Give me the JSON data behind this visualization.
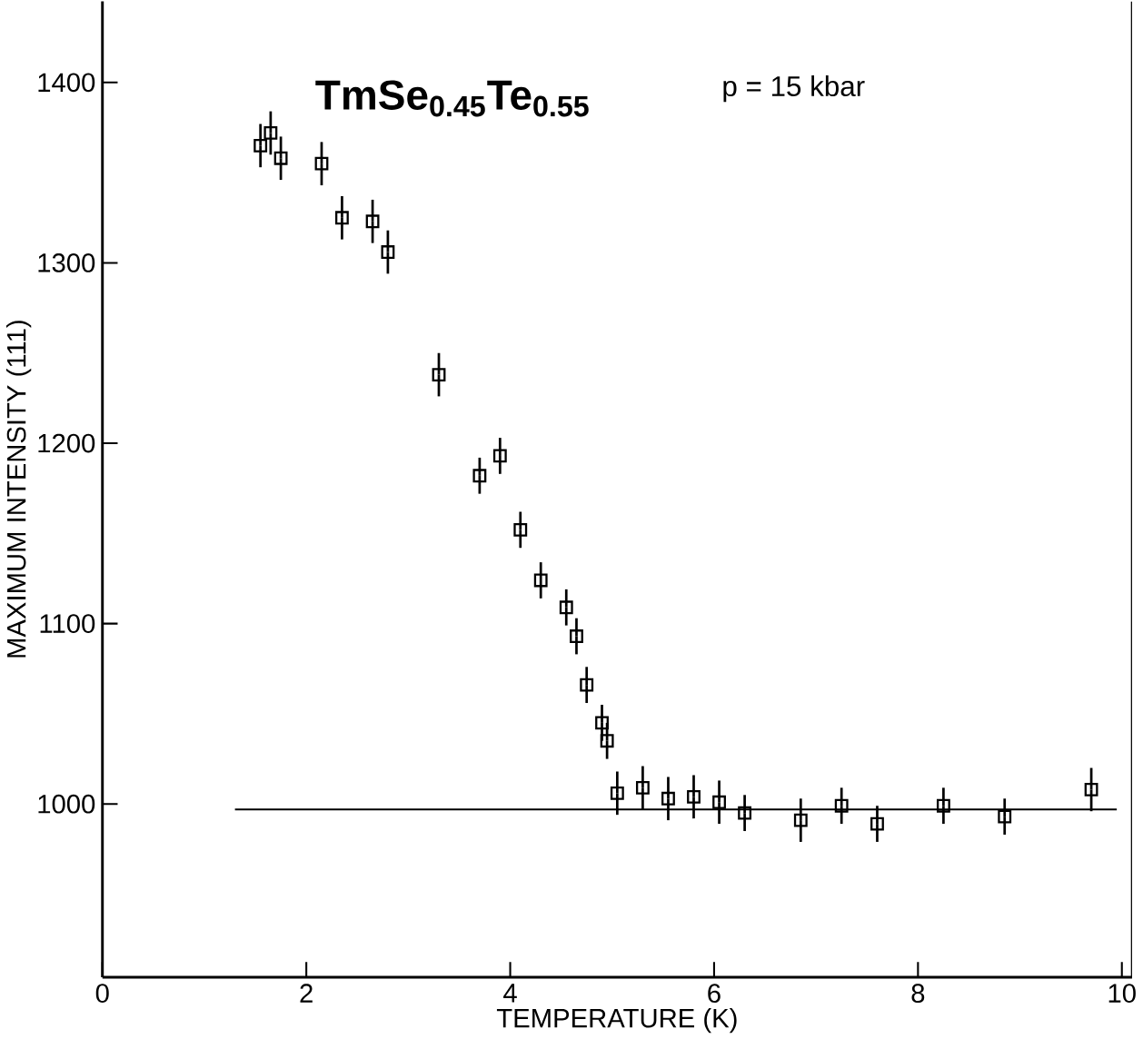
{
  "chart_data": {
    "type": "scatter",
    "title": "TmSe$_{0.45}$Te$_{0.55}$",
    "annotations": [
      "p = 15 kbar"
    ],
    "xlabel": "TEMPERATURE  (K)",
    "ylabel": "MAXIMUM INTENSITY  (111)",
    "xlim": [
      0,
      10.1
    ],
    "ylim": [
      904,
      1445
    ],
    "xticks": [
      0,
      2,
      4,
      6,
      8,
      10
    ],
    "yticks": [
      1000,
      1100,
      1200,
      1300,
      1400
    ],
    "grid": false,
    "marker": "square",
    "series": [
      {
        "color": "#000000",
        "x": [
          1.55,
          1.65,
          1.75,
          2.15,
          2.35,
          2.65,
          2.8,
          3.3,
          3.7,
          3.9,
          4.1,
          4.3,
          4.55,
          4.65,
          4.75,
          4.9,
          4.95,
          5.05,
          5.3,
          5.55,
          5.8,
          6.05,
          6.3,
          6.85,
          7.25,
          7.6,
          8.25,
          8.85,
          9.7
        ],
        "values": [
          1365,
          1372,
          1358,
          1355,
          1325,
          1323,
          1306,
          1238,
          1182,
          1193,
          1152,
          1124,
          1109,
          1093,
          1066,
          1045,
          1035,
          1006,
          1009,
          1003,
          1004,
          1001,
          995,
          991,
          999,
          989,
          999,
          993,
          1008
        ],
        "errors": [
          12,
          12,
          12,
          12,
          12,
          12,
          12,
          12,
          10,
          10,
          10,
          10,
          10,
          10,
          10,
          10,
          10,
          12,
          12,
          12,
          12,
          12,
          10,
          12,
          10,
          10,
          10,
          10,
          12
        ]
      },
      {
        "type": "line",
        "color": "#000000",
        "marker": "none",
        "line_style": "solid",
        "x": [
          1.3,
          9.95
        ],
        "values": [
          997,
          997
        ]
      }
    ]
  }
}
